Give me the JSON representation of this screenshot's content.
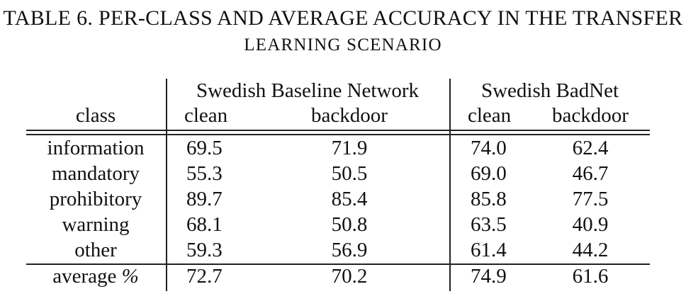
{
  "caption": {
    "line1": "TABLE 6. PER-CLASS AND AVERAGE ACCURACY IN THE TRANSFER",
    "line2": "LEARNING SCENARIO"
  },
  "header": {
    "class_label": "class",
    "group1": "Swedish Baseline Network",
    "group2": "Swedish BadNet",
    "clean": "clean",
    "backdoor": "backdoor"
  },
  "rows": [
    {
      "class": "information",
      "base_clean": "69.5",
      "base_backdoor": "71.9",
      "bad_clean": "74.0",
      "bad_backdoor": "62.4"
    },
    {
      "class": "mandatory",
      "base_clean": "55.3",
      "base_backdoor": "50.5",
      "bad_clean": "69.0",
      "bad_backdoor": "46.7"
    },
    {
      "class": "prohibitory",
      "base_clean": "89.7",
      "base_backdoor": "85.4",
      "bad_clean": "85.8",
      "bad_backdoor": "77.5"
    },
    {
      "class": "warning",
      "base_clean": "68.1",
      "base_backdoor": "50.8",
      "bad_clean": "63.5",
      "bad_backdoor": "40.9"
    },
    {
      "class": "other",
      "base_clean": "59.3",
      "base_backdoor": "56.9",
      "bad_clean": "61.4",
      "bad_backdoor": "44.2"
    }
  ],
  "average": {
    "label": "average",
    "percent": "%",
    "base_clean": "72.7",
    "base_backdoor": "70.2",
    "bad_clean": "74.9",
    "bad_backdoor": "61.6"
  }
}
